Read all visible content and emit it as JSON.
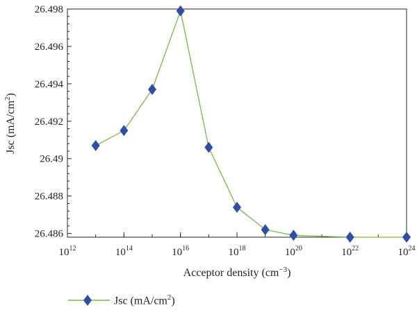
{
  "chart_data": {
    "type": "line",
    "x_scale": "log10",
    "xlabel_text": "Acceptor density (cm",
    "xlabel_sup": "−3",
    "xlabel_close": ")",
    "ylabel_text": "Jsc (mA/cm",
    "ylabel_sup": "2",
    "ylabel_close": ")",
    "xlim_exp": [
      12,
      24
    ],
    "ylim": [
      26.4858,
      26.498
    ],
    "x_ticks_exp": [
      12,
      14,
      16,
      18,
      20,
      22,
      24
    ],
    "x_tick_base": "10",
    "y_ticks": [
      26.486,
      26.488,
      26.49,
      26.492,
      26.494,
      26.496,
      26.498
    ],
    "y_tick_labels": [
      "26.486",
      "26.488",
      "26.49",
      "26.492",
      "26.494",
      "26.496",
      "26.498"
    ],
    "grid": false,
    "legend_position": "bottom-left",
    "series": [
      {
        "name_text": "Jsc (mA/cm",
        "name_sup": "2",
        "name_close": ")",
        "color": "#7ab648",
        "marker_color": "#2e4fa5",
        "marker": "diamond",
        "x_exp": [
          13,
          14,
          15,
          16,
          17,
          18,
          19,
          20,
          22,
          24
        ],
        "y": [
          26.4907,
          26.4915,
          26.4937,
          26.4979,
          26.4906,
          26.4874,
          26.4862,
          26.4859,
          26.4858,
          26.4858
        ]
      }
    ]
  }
}
